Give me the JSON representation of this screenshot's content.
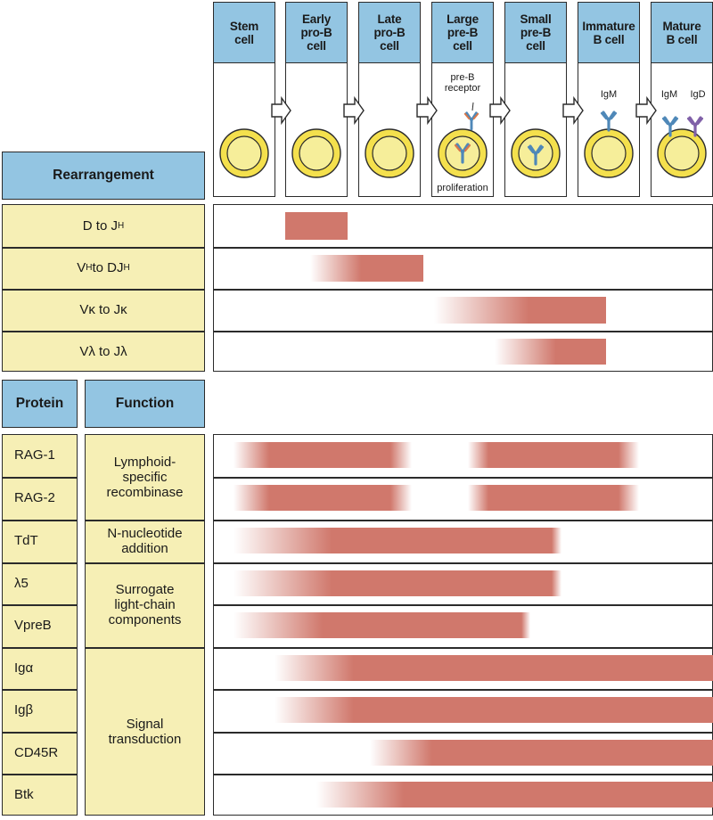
{
  "stages": [
    {
      "id": "stem",
      "label": "Stem\ncell"
    },
    {
      "id": "early-pro-b",
      "label": "Early\npro-B\ncell"
    },
    {
      "id": "late-pro-b",
      "label": "Late\npro-B\ncell"
    },
    {
      "id": "large-pre-b",
      "label": "Large\npre-B\ncell"
    },
    {
      "id": "small-pre-b",
      "label": "Small\npre-B\ncell"
    },
    {
      "id": "immature-b",
      "label": "Immature\nB cell"
    },
    {
      "id": "mature-b",
      "label": "Mature\nB cell"
    }
  ],
  "annotations": {
    "pre_b_receptor": "pre-B\nreceptor",
    "proliferation": "proliferation",
    "igm_immature": "IgM",
    "igm_mature": "IgM",
    "igd_mature": "IgD"
  },
  "headers": {
    "rearrangement": "Rearrangement",
    "protein": "Protein",
    "function": "Function"
  },
  "rearrangements": [
    {
      "id": "d-jh",
      "label": "D to J",
      "sub": "H"
    },
    {
      "id": "vh-djh",
      "label": "V",
      "sub": "H",
      "tail": " to DJ",
      "sub2": "H"
    },
    {
      "id": "vk-jk",
      "label": "Vκ to Jκ"
    },
    {
      "id": "vl-jl",
      "label": "Vλ to Jλ"
    }
  ],
  "proteins": [
    {
      "id": "rag1",
      "label": "RAG-1"
    },
    {
      "id": "rag2",
      "label": "RAG-2"
    },
    {
      "id": "tdt",
      "label": "TdT"
    },
    {
      "id": "lambda5",
      "label": "λ5"
    },
    {
      "id": "vpreb",
      "label": "VpreB"
    },
    {
      "id": "iga",
      "label": "Igα"
    },
    {
      "id": "igb",
      "label": "Igβ"
    },
    {
      "id": "cd45r",
      "label": "CD45R"
    },
    {
      "id": "btk",
      "label": "Btk"
    }
  ],
  "functions": [
    {
      "id": "lymphoid-recombinase",
      "label": "Lymphoid-\nspecific\nrecombinase"
    },
    {
      "id": "n-nucleotide",
      "label": "N-nucleotide\naddition"
    },
    {
      "id": "surrogate-light-chain",
      "label": "Surrogate\nlight-chain\ncomponents"
    },
    {
      "id": "signal-transduction",
      "label": "Signal\ntransduction"
    }
  ],
  "colors": {
    "bar": "#d0786c",
    "header_blue": "#93c5e2",
    "label_yellow": "#f6efb5",
    "cell_yellow": "#f4e04d"
  }
}
